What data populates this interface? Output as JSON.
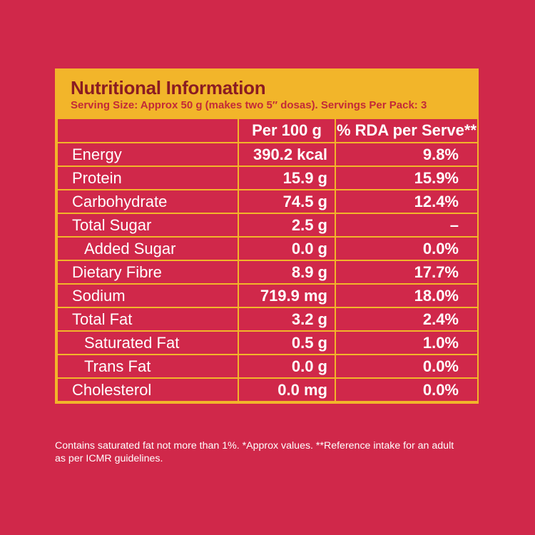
{
  "header": {
    "title": "Nutritional Information",
    "serving": "Serving Size: Approx 50 g (makes two 5″ dosas). Servings Per Pack: 3"
  },
  "table": {
    "columns": [
      "",
      "Per 100 g",
      "% RDA per Serve**"
    ],
    "rows": [
      {
        "name": "Energy",
        "per100g": "390.2 kcal",
        "rda": "9.8%"
      },
      {
        "name": "Protein",
        "per100g": "15.9 g",
        "rda": "15.9%"
      },
      {
        "name": "Carbohydrate",
        "per100g": "74.5 g",
        "rda": "12.4%"
      },
      {
        "name": "Total Sugar",
        "per100g": "2.5 g",
        "rda": "–"
      },
      {
        "name": "Added Sugar",
        "per100g": "0.0 g",
        "rda": "0.0%"
      },
      {
        "name": "Dietary Fibre",
        "per100g": "8.9 g",
        "rda": "17.7%"
      },
      {
        "name": "Sodium",
        "per100g": "719.9 mg",
        "rda": "18.0%"
      },
      {
        "name": "Total Fat",
        "per100g": "3.2 g",
        "rda": "2.4%"
      },
      {
        "name": "Saturated Fat",
        "per100g": "0.5 g",
        "rda": "1.0%"
      },
      {
        "name": "Trans Fat",
        "per100g": "0.0 g",
        "rda": "0.0%"
      },
      {
        "name": "Cholesterol",
        "per100g": "0.0 mg",
        "rda": "0.0%"
      }
    ]
  },
  "footnote": {
    "line1": "Contains saturated fat not more than 1%. *Approx values. **Reference intake for an adult",
    "line2": "as per ICMR guidelines."
  },
  "colors": {
    "background": "#d0284a",
    "header_band": "#f2b52a",
    "title_text": "#8a1c22",
    "serving_text": "#c22a38",
    "table_text": "#ffffff"
  }
}
